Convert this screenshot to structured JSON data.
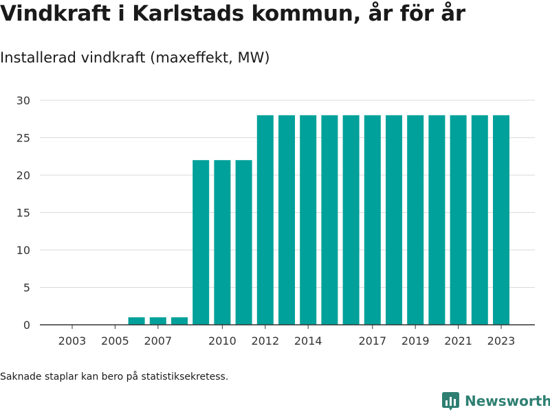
{
  "header": {
    "title": "Vindkraft i Karlstads kommun, år för år",
    "subtitle": "Installerad vindkraft (maxeffekt, MW)"
  },
  "footer": {
    "note": "Saknade staplar kan bero på statistiksekretess.",
    "brand": "Newsworthy",
    "brand_icon": "bar-chart-logo-icon"
  },
  "colors": {
    "bar": "#00a19a",
    "brand": "#2e7f72",
    "grid": "#d9d9d9",
    "axis": "#333333"
  },
  "chart_data": {
    "type": "bar",
    "title": "Vindkraft i Karlstads kommun, år för år",
    "subtitle": "Installerad vindkraft (maxeffekt, MW)",
    "xlabel": "",
    "ylabel": "",
    "categories": [
      "2003",
      "2004",
      "2005",
      "2006",
      "2007",
      "2008",
      "2009",
      "2010",
      "2011",
      "2012",
      "2013",
      "2014",
      "2015",
      "2016",
      "2017",
      "2018",
      "2019",
      "2020",
      "2021",
      "2022",
      "2023"
    ],
    "values": [
      0,
      0,
      0,
      1,
      1,
      1,
      22,
      22,
      22,
      28,
      28,
      28,
      28,
      28,
      28,
      28,
      28,
      28,
      28,
      28,
      28
    ],
    "x_tick_labels": [
      "2003",
      "2005",
      "2007",
      "2010",
      "2012",
      "2014",
      "2017",
      "2019",
      "2021",
      "2023"
    ],
    "y_ticks": [
      0,
      5,
      10,
      15,
      20,
      25,
      30
    ],
    "ylim": [
      0,
      30
    ],
    "grid": true,
    "legend": "none"
  }
}
